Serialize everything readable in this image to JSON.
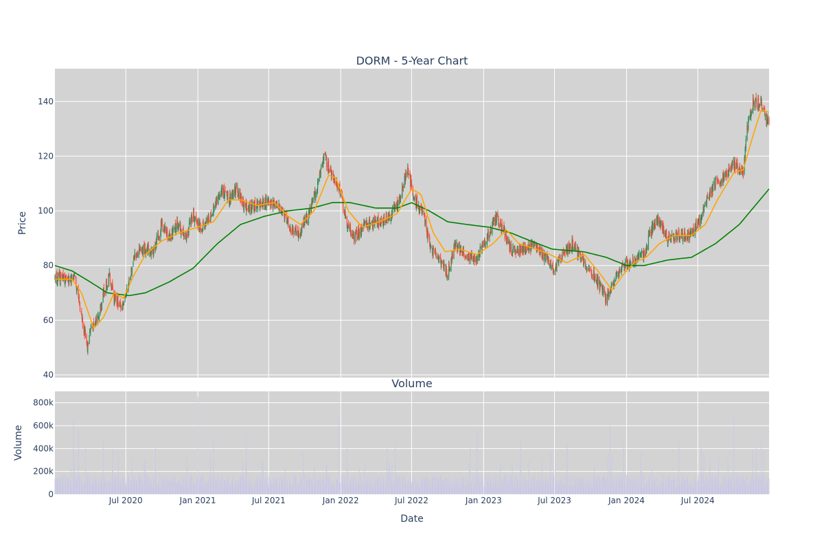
{
  "title": "DORM - 5-Year Chart",
  "colors": {
    "plot_bg": "#d3d3d3",
    "grid": "#ffffff",
    "up": "#2e8b57",
    "down": "#ff4b3a",
    "ma_short": "#ffa500",
    "ma_long": "#008000",
    "volume": "#c9c9e6",
    "text": "#2a3f5f"
  },
  "chart_data": [
    {
      "type": "candlestick",
      "title": "DORM - 5-Year Chart",
      "ylabel": "Price",
      "ylim": [
        39,
        152
      ],
      "yticks": [
        40,
        60,
        80,
        100,
        120,
        140
      ],
      "xlim": [
        "2020-01-02",
        "2024-12-30"
      ],
      "grid": true,
      "series_price_anchors": [
        [
          "2020-01-02",
          76
        ],
        [
          "2020-02-10",
          74
        ],
        [
          "2020-02-20",
          77
        ],
        [
          "2020-03-10",
          62
        ],
        [
          "2020-03-25",
          50
        ],
        [
          "2020-04-01",
          56
        ],
        [
          "2020-04-20",
          60
        ],
        [
          "2020-05-05",
          70
        ],
        [
          "2020-05-20",
          76
        ],
        [
          "2020-06-01",
          68
        ],
        [
          "2020-06-20",
          65
        ],
        [
          "2020-07-10",
          74
        ],
        [
          "2020-07-25",
          84
        ],
        [
          "2020-08-15",
          86
        ],
        [
          "2020-09-10",
          85
        ],
        [
          "2020-10-01",
          95
        ],
        [
          "2020-10-20",
          90
        ],
        [
          "2020-11-10",
          95
        ],
        [
          "2020-12-01",
          90
        ],
        [
          "2020-12-20",
          99
        ],
        [
          "2021-01-10",
          93
        ],
        [
          "2021-02-05",
          99
        ],
        [
          "2021-03-01",
          108
        ],
        [
          "2021-03-20",
          104
        ],
        [
          "2021-04-10",
          108
        ],
        [
          "2021-05-01",
          101
        ],
        [
          "2021-06-01",
          102
        ],
        [
          "2021-07-01",
          104
        ],
        [
          "2021-08-01",
          101
        ],
        [
          "2021-08-25",
          94
        ],
        [
          "2021-09-15",
          92
        ],
        [
          "2021-10-10",
          98
        ],
        [
          "2021-11-01",
          108
        ],
        [
          "2021-11-20",
          120
        ],
        [
          "2021-12-10",
          113
        ],
        [
          "2021-12-28",
          109
        ],
        [
          "2022-01-15",
          96
        ],
        [
          "2022-02-05",
          90
        ],
        [
          "2022-03-01",
          95
        ],
        [
          "2022-04-01",
          96
        ],
        [
          "2022-05-01",
          97
        ],
        [
          "2022-06-01",
          104
        ],
        [
          "2022-06-20",
          115
        ],
        [
          "2022-07-10",
          104
        ],
        [
          "2022-08-01",
          98
        ],
        [
          "2022-08-20",
          85
        ],
        [
          "2022-09-10",
          83
        ],
        [
          "2022-10-01",
          77
        ],
        [
          "2022-10-20",
          88
        ],
        [
          "2022-11-15",
          84
        ],
        [
          "2022-12-10",
          82
        ],
        [
          "2023-01-05",
          88
        ],
        [
          "2023-02-01",
          98
        ],
        [
          "2023-02-20",
          93
        ],
        [
          "2023-03-15",
          85
        ],
        [
          "2023-04-10",
          86
        ],
        [
          "2023-05-10",
          87
        ],
        [
          "2023-06-10",
          83
        ],
        [
          "2023-07-01",
          78
        ],
        [
          "2023-07-20",
          84
        ],
        [
          "2023-08-15",
          88
        ],
        [
          "2023-09-10",
          82
        ],
        [
          "2023-10-01",
          78
        ],
        [
          "2023-10-20",
          74
        ],
        [
          "2023-11-10",
          68
        ],
        [
          "2023-11-25",
          72
        ],
        [
          "2023-12-20",
          80
        ],
        [
          "2024-01-20",
          82
        ],
        [
          "2024-02-15",
          84
        ],
        [
          "2024-03-01",
          92
        ],
        [
          "2024-03-20",
          97
        ],
        [
          "2024-04-15",
          90
        ],
        [
          "2024-05-10",
          91
        ],
        [
          "2024-06-10",
          91
        ],
        [
          "2024-07-01",
          95
        ],
        [
          "2024-07-20",
          102
        ],
        [
          "2024-08-15",
          110
        ],
        [
          "2024-09-10",
          113
        ],
        [
          "2024-10-01",
          117
        ],
        [
          "2024-10-25",
          114
        ],
        [
          "2024-11-05",
          131
        ],
        [
          "2024-11-20",
          140
        ],
        [
          "2024-12-10",
          139
        ],
        [
          "2024-12-30",
          131
        ]
      ],
      "ma_short_anchors": [
        [
          "2020-01-02",
          75
        ],
        [
          "2020-02-15",
          75
        ],
        [
          "2020-03-10",
          70
        ],
        [
          "2020-04-10",
          57
        ],
        [
          "2020-05-05",
          61
        ],
        [
          "2020-06-01",
          70
        ],
        [
          "2020-06-25",
          68
        ],
        [
          "2020-07-20",
          76
        ],
        [
          "2020-08-20",
          84
        ],
        [
          "2020-10-01",
          89
        ],
        [
          "2020-11-15",
          92
        ],
        [
          "2021-01-01",
          94
        ],
        [
          "2021-02-10",
          96
        ],
        [
          "2021-03-20",
          104
        ],
        [
          "2021-04-20",
          104
        ],
        [
          "2021-06-01",
          102
        ],
        [
          "2021-07-15",
          103
        ],
        [
          "2021-08-20",
          98
        ],
        [
          "2021-09-20",
          95
        ],
        [
          "2021-10-25",
          100
        ],
        [
          "2021-12-01",
          113
        ],
        [
          "2021-12-20",
          112
        ],
        [
          "2022-01-20",
          100
        ],
        [
          "2022-02-25",
          94
        ],
        [
          "2022-04-10",
          96
        ],
        [
          "2022-05-25",
          99
        ],
        [
          "2022-07-01",
          108
        ],
        [
          "2022-07-25",
          106
        ],
        [
          "2022-08-25",
          92
        ],
        [
          "2022-09-25",
          85
        ],
        [
          "2022-11-01",
          86
        ],
        [
          "2022-12-15",
          84
        ],
        [
          "2023-01-25",
          88
        ],
        [
          "2023-02-28",
          93
        ],
        [
          "2023-04-01",
          88
        ],
        [
          "2023-05-15",
          86
        ],
        [
          "2023-06-20",
          84
        ],
        [
          "2023-08-01",
          81
        ],
        [
          "2023-09-15",
          84
        ],
        [
          "2023-10-20",
          78
        ],
        [
          "2023-11-25",
          71
        ],
        [
          "2023-12-20",
          76
        ],
        [
          "2024-01-20",
          81
        ],
        [
          "2024-02-20",
          83
        ],
        [
          "2024-03-25",
          88
        ],
        [
          "2024-05-01",
          91
        ],
        [
          "2024-06-15",
          91
        ],
        [
          "2024-07-20",
          95
        ],
        [
          "2024-08-20",
          104
        ],
        [
          "2024-10-01",
          114
        ],
        [
          "2024-10-25",
          115
        ],
        [
          "2024-11-20",
          128
        ],
        [
          "2024-12-10",
          137
        ],
        [
          "2024-12-30",
          136
        ]
      ],
      "ma_long_anchors": [
        [
          "2020-01-02",
          80
        ],
        [
          "2020-02-15",
          78
        ],
        [
          "2020-04-01",
          74
        ],
        [
          "2020-05-15",
          70
        ],
        [
          "2020-07-10",
          69
        ],
        [
          "2020-08-20",
          70
        ],
        [
          "2020-10-20",
          74
        ],
        [
          "2020-12-20",
          79
        ],
        [
          "2021-02-20",
          88
        ],
        [
          "2021-04-20",
          95
        ],
        [
          "2021-06-20",
          98
        ],
        [
          "2021-08-20",
          100
        ],
        [
          "2021-10-20",
          101
        ],
        [
          "2021-12-10",
          103
        ],
        [
          "2022-01-25",
          103
        ],
        [
          "2022-04-01",
          101
        ],
        [
          "2022-05-25",
          101
        ],
        [
          "2022-07-01",
          103
        ],
        [
          "2022-08-15",
          100
        ],
        [
          "2022-10-01",
          96
        ],
        [
          "2022-11-20",
          95
        ],
        [
          "2023-01-15",
          94
        ],
        [
          "2023-03-10",
          92
        ],
        [
          "2023-05-01",
          89
        ],
        [
          "2023-06-25",
          86
        ],
        [
          "2023-09-15",
          85
        ],
        [
          "2023-11-10",
          83
        ],
        [
          "2024-01-01",
          80
        ],
        [
          "2024-02-15",
          80
        ],
        [
          "2024-04-15",
          82
        ],
        [
          "2024-06-15",
          83
        ],
        [
          "2024-08-15",
          88
        ],
        [
          "2024-10-15",
          95
        ],
        [
          "2024-12-30",
          108
        ]
      ]
    },
    {
      "type": "bar",
      "title": "Volume",
      "xlabel": "Date",
      "ylabel": "Volume",
      "ylim": [
        0,
        900000
      ],
      "yticks": [
        0,
        200000,
        400000,
        600000,
        800000
      ],
      "ytick_labels": [
        "0",
        "200k",
        "400k",
        "600k",
        "800k"
      ],
      "x_tick_labels": [
        "Jul 2020",
        "Jan 2021",
        "Jul 2021",
        "Jan 2022",
        "Jul 2022",
        "Jan 2023",
        "Jul 2023",
        "Jan 2024",
        "Jul 2024"
      ],
      "x_tick_dates": [
        "2020-07-01",
        "2021-01-01",
        "2021-07-01",
        "2022-01-01",
        "2022-07-01",
        "2023-01-01",
        "2023-07-01",
        "2024-01-01",
        "2024-07-01"
      ],
      "typical_volume": 130000,
      "volume_spikes": [
        [
          "2020-02-18",
          660000
        ],
        [
          "2020-03-02",
          570000
        ],
        [
          "2020-03-20",
          420000
        ],
        [
          "2020-05-05",
          470000
        ],
        [
          "2020-09-15",
          420000
        ],
        [
          "2021-01-01",
          850000
        ],
        [
          "2021-05-05",
          510000
        ],
        [
          "2021-12-28",
          670000
        ],
        [
          "2022-11-05",
          410000
        ],
        [
          "2022-12-15",
          560000
        ],
        [
          "2023-07-03",
          390000
        ],
        [
          "2023-11-20",
          610000
        ],
        [
          "2023-12-25",
          460000
        ],
        [
          "2024-07-10",
          420000
        ],
        [
          "2024-10-01",
          670000
        ],
        [
          "2024-12-10",
          480000
        ]
      ]
    }
  ]
}
